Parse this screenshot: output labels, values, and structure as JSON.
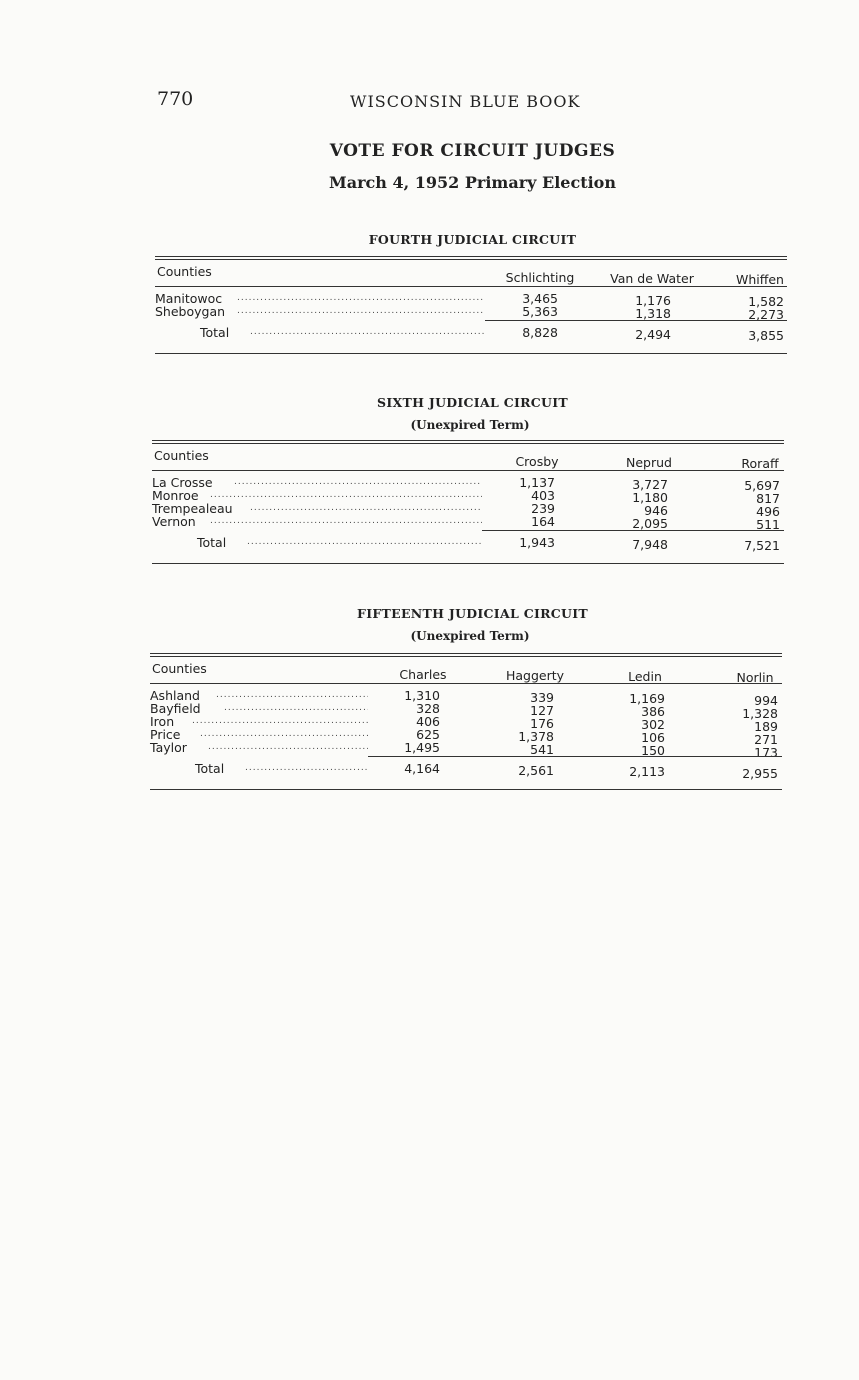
{
  "header": {
    "page_number": "770",
    "book_title": "WISCONSIN BLUE BOOK"
  },
  "title": "VOTE FOR CIRCUIT JUDGES",
  "subtitle": "March 4, 1952 Primary Election",
  "sections": [
    {
      "title": "FOURTH JUDICIAL CIRCUIT",
      "subtitle": "",
      "columns": [
        "Counties",
        "Schlichting",
        "Van de Water",
        "Whiffen"
      ],
      "rows": [
        {
          "county": "Manitowoc",
          "values": [
            "3,465",
            "1,176",
            "1,582"
          ]
        },
        {
          "county": "Sheboygan",
          "values": [
            "5,363",
            "1,318",
            "2,273"
          ]
        }
      ],
      "total": {
        "label": "Total",
        "values": [
          "8,828",
          "2,494",
          "3,855"
        ]
      }
    },
    {
      "title": "SIXTH JUDICIAL CIRCUIT",
      "subtitle": "(Unexpired Term)",
      "columns": [
        "Counties",
        "Crosby",
        "Neprud",
        "Roraff"
      ],
      "rows": [
        {
          "county": "La Crosse",
          "values": [
            "1,137",
            "3,727",
            "5,697"
          ]
        },
        {
          "county": "Monroe",
          "values": [
            "403",
            "1,180",
            "817"
          ]
        },
        {
          "county": "Trempealeau",
          "values": [
            "239",
            "946",
            "496"
          ]
        },
        {
          "county": "Vernon",
          "values": [
            "164",
            "2,095",
            "511"
          ]
        }
      ],
      "total": {
        "label": "Total",
        "values": [
          "1,943",
          "7,948",
          "7,521"
        ]
      }
    },
    {
      "title": "FIFTEENTH JUDICIAL CIRCUIT",
      "subtitle": "(Unexpired Term)",
      "columns": [
        "Counties",
        "Charles",
        "Haggerty",
        "Ledin",
        "Norlin"
      ],
      "rows": [
        {
          "county": "Ashland",
          "values": [
            "1,310",
            "339",
            "1,169",
            "994"
          ]
        },
        {
          "county": "Bayfield",
          "values": [
            "328",
            "127",
            "386",
            "1,328"
          ]
        },
        {
          "county": "Iron",
          "values": [
            "406",
            "176",
            "302",
            "189"
          ]
        },
        {
          "county": "Price",
          "values": [
            "625",
            "1,378",
            "106",
            "271"
          ]
        },
        {
          "county": "Taylor",
          "values": [
            "1,495",
            "541",
            "150",
            "173"
          ]
        }
      ],
      "total": {
        "label": "Total",
        "values": [
          "4,164",
          "2,561",
          "2,113",
          "2,955"
        ]
      }
    }
  ]
}
